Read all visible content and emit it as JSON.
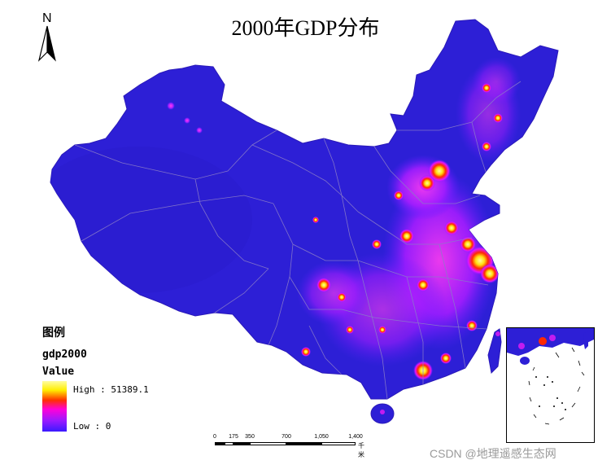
{
  "map": {
    "title": "2000年GDP分布",
    "north_arrow_label": "N",
    "legend": {
      "heading": "图例",
      "field": "gdp2000",
      "value_label": "Value",
      "high_label": "High : 51389.1",
      "low_label": "Low : 0",
      "high_value": 51389.1,
      "low_value": 0,
      "ramp_colors": [
        "#fffda0",
        "#ffee00",
        "#ff3000",
        "#ff00d8",
        "#9b1aff",
        "#3a1aff"
      ]
    },
    "scale_bar": {
      "ticks": [
        "0",
        "175",
        "350",
        "700",
        "1,050",
        "1,400"
      ],
      "unit": "千米"
    },
    "colors": {
      "background_low": "#2d1fd6",
      "boundary": "#8a7cc8",
      "hotspot_mid": "#c21cf0",
      "hotspot_high": "#ff2a00",
      "hotspot_peak": "#ffec3a"
    }
  },
  "watermark": "CSDN @地理遥感生态网"
}
